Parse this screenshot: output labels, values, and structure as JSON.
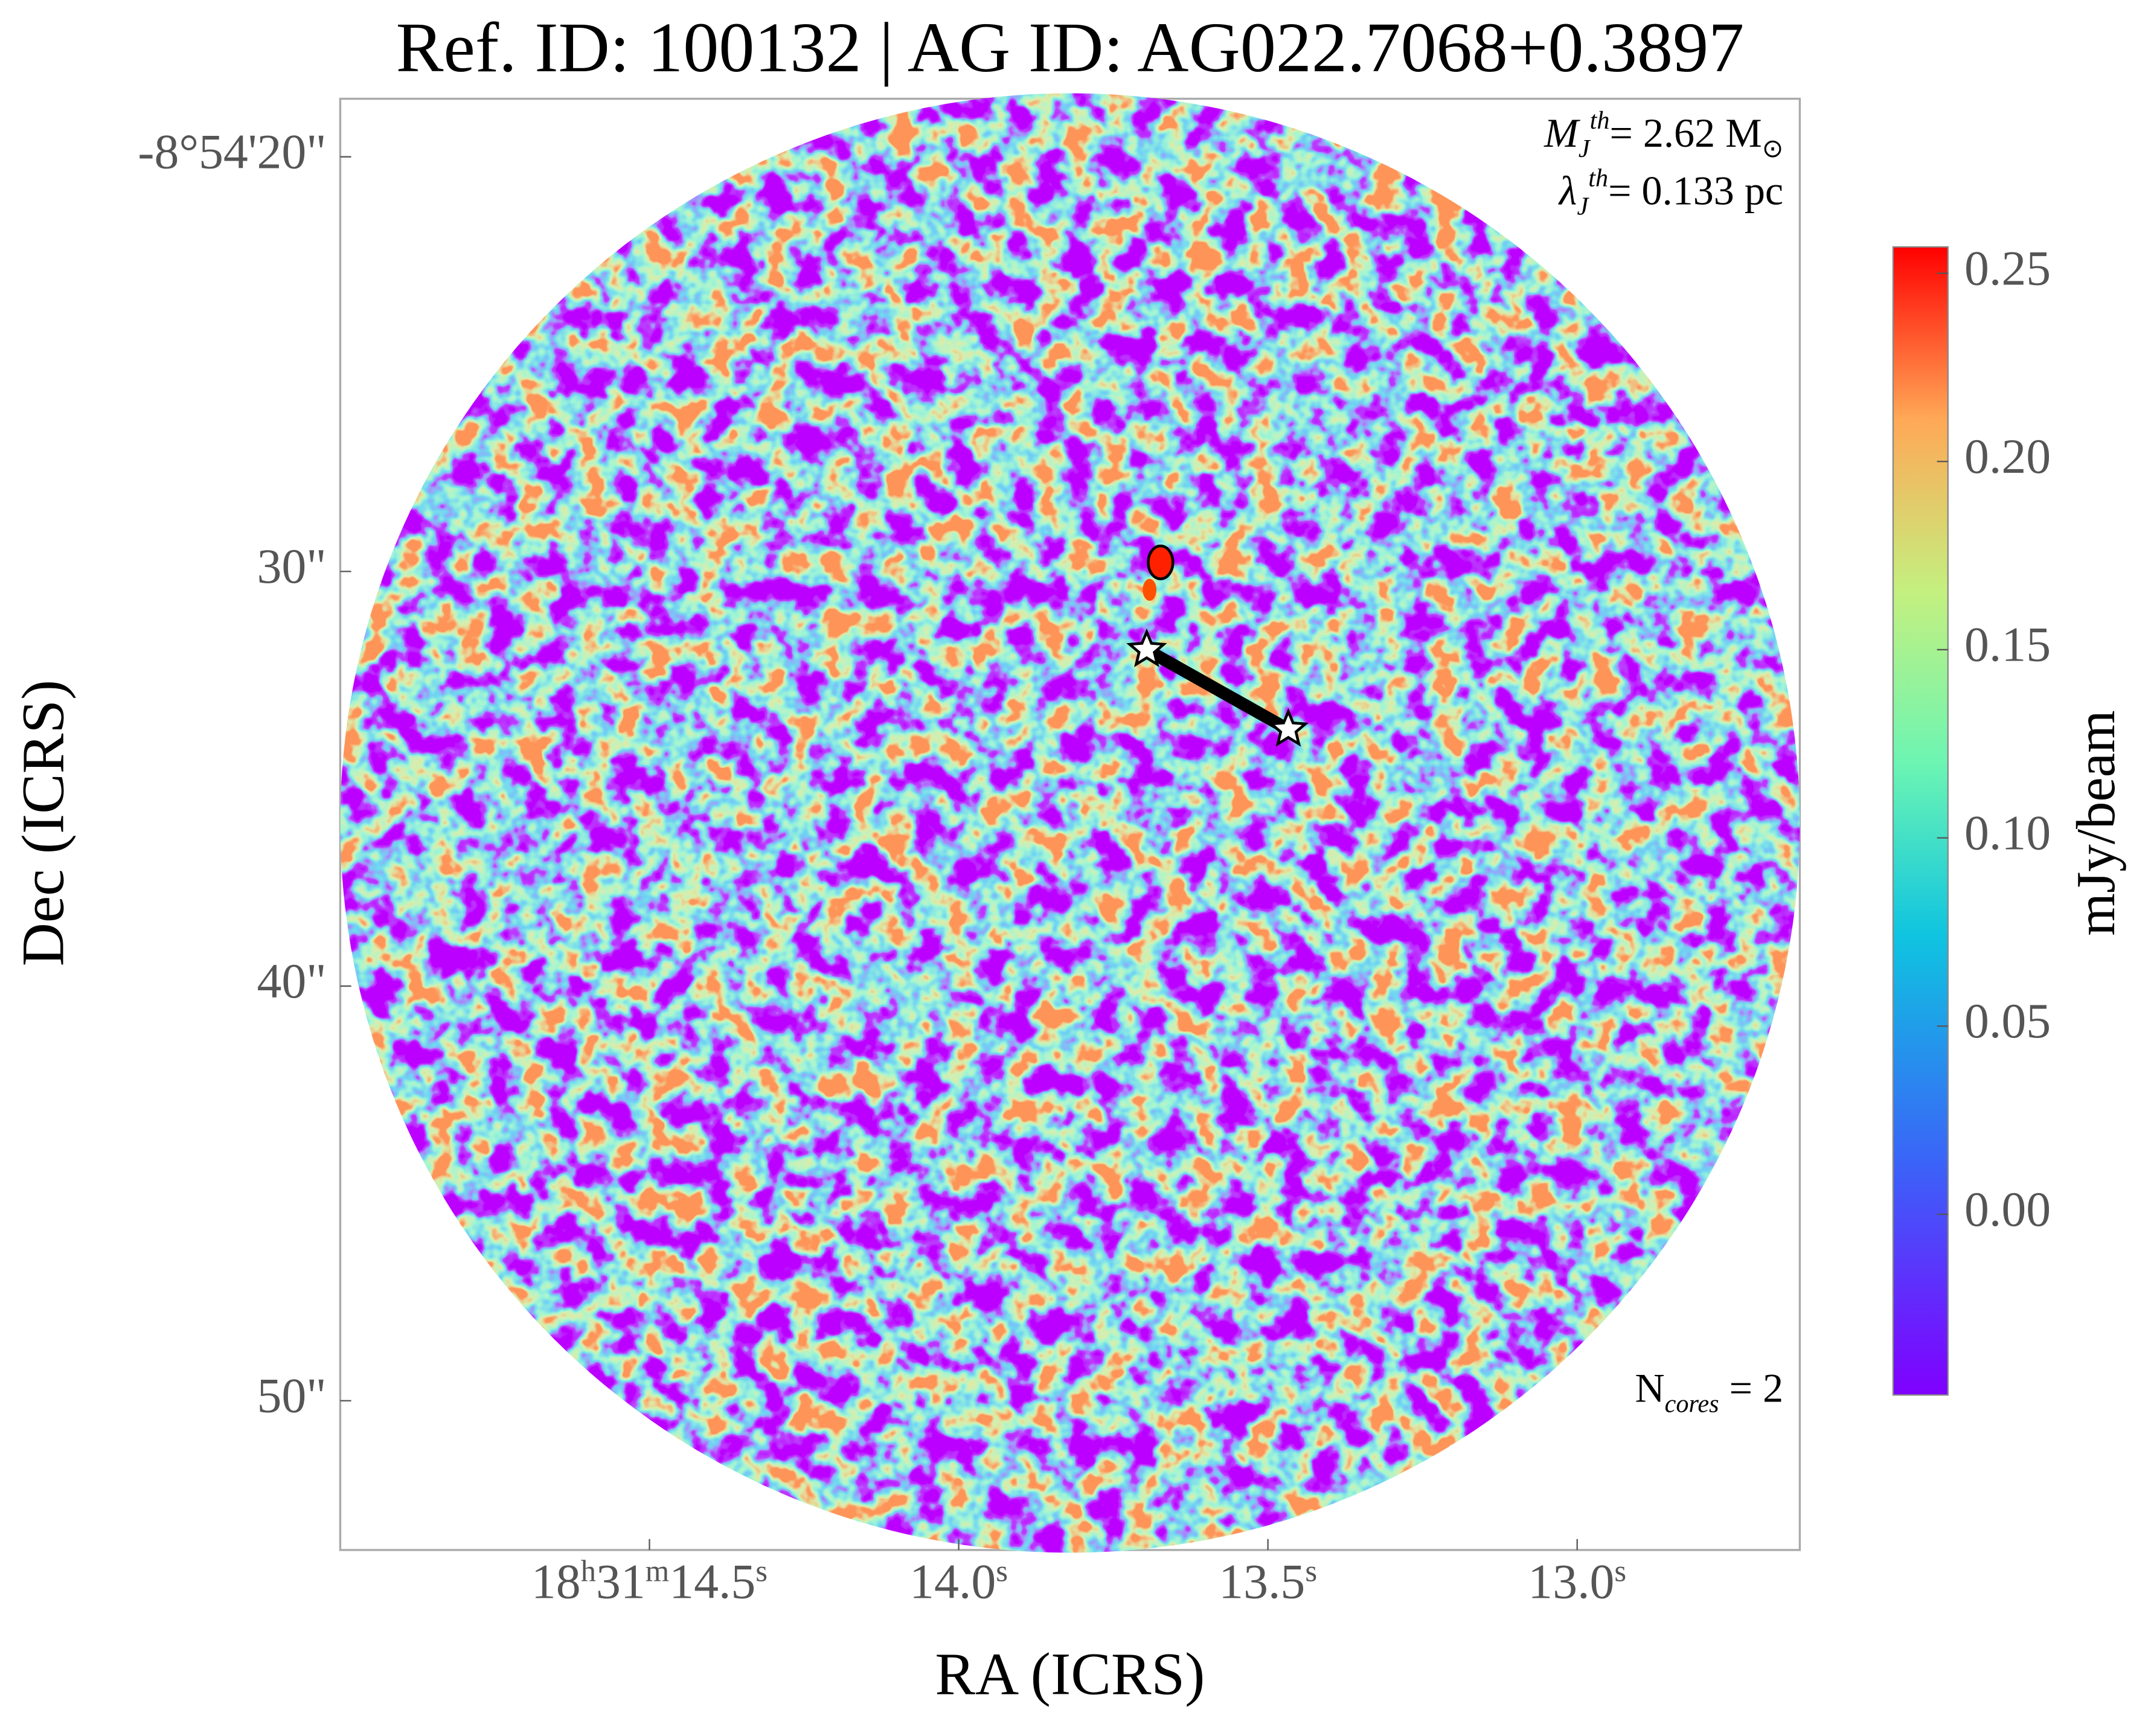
{
  "chart_data": {
    "type": "image",
    "title": "Ref. ID: 100132 | AG ID: AG022.7068+0.3897",
    "xlabel": "RA (ICRS)",
    "ylabel": "Dec (ICRS)",
    "xlim": [
      15.0,
      12.64
    ],
    "ylim": [
      53.6,
      18.6
    ],
    "xticks": [
      {
        "value": 14.5,
        "label": [
          {
            "text": "18"
          },
          {
            "text": "h",
            "sup": true
          },
          {
            "text": "31"
          },
          {
            "text": "m",
            "sup": true
          },
          {
            "text": "14.5"
          },
          {
            "text": "s",
            "sup": true
          }
        ]
      },
      {
        "value": 14.0,
        "label": [
          {
            "text": "14.0"
          },
          {
            "text": "s",
            "sup": true
          }
        ]
      },
      {
        "value": 13.5,
        "label": [
          {
            "text": "13.5"
          },
          {
            "text": "s",
            "sup": true
          }
        ]
      },
      {
        "value": 13.0,
        "label": [
          {
            "text": "13.0"
          },
          {
            "text": "s",
            "sup": true
          }
        ]
      }
    ],
    "yticks": [
      {
        "value": 20,
        "label": "-8°54'20\""
      },
      {
        "value": 30,
        "label": "30\""
      },
      {
        "value": 40,
        "label": "40\""
      },
      {
        "value": 50,
        "label": "50\""
      }
    ],
    "colorbar": {
      "label": "mJy/beam",
      "clim": [
        -0.048,
        0.257
      ],
      "ticks": [
        {
          "value": 0,
          "label": "0.00"
        },
        0.05,
        {
          "value": 0.1,
          "label": "0.10"
        },
        0.15,
        {
          "value": 0.2,
          "label": "0.20"
        },
        0.25
      ]
    },
    "cores": {
      "ra": [
        13.696,
        13.467
      ],
      "dec": [
        31.89,
        33.81
      ],
      "color": "#ffffff"
    },
    "annotations": [
      [
        {
          "text": "M",
          "italic": true
        },
        {
          "text": "J",
          "sub": true,
          "italic": true
        },
        {
          "text": "th",
          "sup": true,
          "italic": true
        },
        {
          "text": "= 2.62 M"
        },
        {
          "text": "⊙",
          "sub": true
        }
      ],
      [
        {
          "text": "λ",
          "italic": true
        },
        {
          "text": "J",
          "sub": true,
          "italic": true
        },
        {
          "text": "th",
          "sup": true,
          "italic": true
        },
        {
          "text": "= 0.133 pc"
        }
      ],
      [
        {
          "text": "N"
        },
        {
          "text": "cores",
          "sub": true,
          "italic": true
        },
        {
          "text": " = 2"
        }
      ]
    ]
  }
}
